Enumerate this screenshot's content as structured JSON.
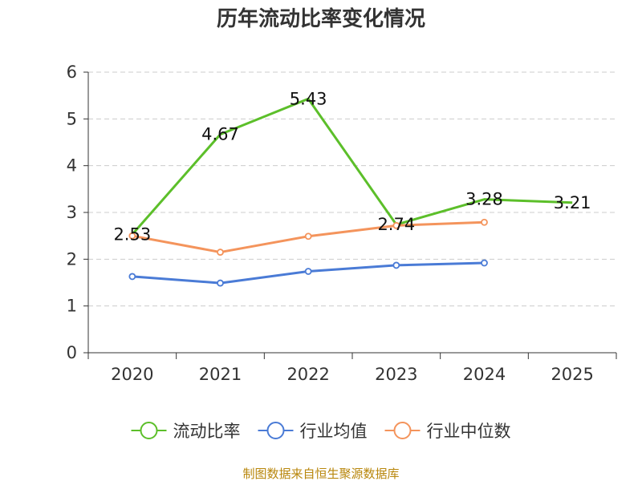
{
  "chart_data": {
    "type": "line",
    "title": "历年流动比率变化情况",
    "categories": [
      "2020",
      "2021",
      "2022",
      "2023",
      "2024",
      "2025"
    ],
    "ylim": [
      0,
      6
    ],
    "yticks": [
      "0",
      "1",
      "2",
      "3",
      "4",
      "5",
      "6"
    ],
    "grid": true,
    "legend_position": "bottom",
    "series": [
      {
        "name": "流动比率",
        "color": "#5cbf2a",
        "values": [
          2.53,
          4.67,
          5.43,
          2.74,
          3.28,
          3.21
        ],
        "labels": [
          "2.53",
          "4.67",
          "5.43",
          "2.74",
          "3.28",
          "3.21"
        ],
        "show_markers": false
      },
      {
        "name": "行业均值",
        "color": "#4a7bd6",
        "values": [
          1.63,
          1.49,
          1.74,
          1.87,
          1.92,
          null
        ],
        "show_markers": true
      },
      {
        "name": "行业中位数",
        "color": "#f4945c",
        "values": [
          2.5,
          2.15,
          2.49,
          2.72,
          2.79,
          null
        ],
        "show_markers": true
      }
    ]
  },
  "source": "制图数据来自恒生聚源数据库"
}
